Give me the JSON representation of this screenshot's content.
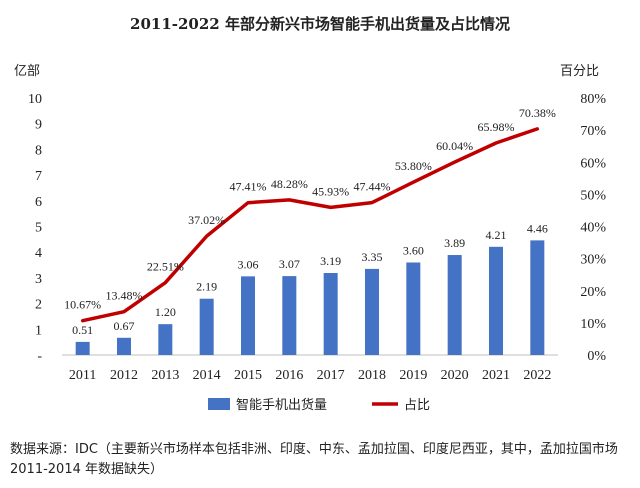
{
  "chart_data": {
    "type": "bar",
    "title": "2011-2022 年部分新兴市场智能手机出货量及占比情况",
    "y_left_label": "亿部",
    "y_right_label": "百分比",
    "categories": [
      "2011",
      "2012",
      "2013",
      "2014",
      "2015",
      "2016",
      "2017",
      "2018",
      "2019",
      "2020",
      "2021",
      "2022"
    ],
    "y_left_ticks": [
      "-",
      "1",
      "2",
      "3",
      "4",
      "5",
      "6",
      "7",
      "8",
      "9",
      "10"
    ],
    "y_right_ticks": [
      "0%",
      "10%",
      "20%",
      "30%",
      "40%",
      "50%",
      "60%",
      "70%",
      "80%"
    ],
    "ylim_left": [
      0,
      10
    ],
    "ylim_right": [
      0,
      80
    ],
    "series": [
      {
        "name": "智能手机出货量",
        "type": "bar",
        "axis": "left",
        "color": "#4472C4",
        "values": [
          0.51,
          0.67,
          1.2,
          2.19,
          3.06,
          3.07,
          3.19,
          3.35,
          3.6,
          3.89,
          4.21,
          4.46
        ],
        "labels": [
          "0.51",
          "0.67",
          "1.20",
          "2.19",
          "3.06",
          "3.07",
          "3.19",
          "3.35",
          "3.60",
          "3.89",
          "4.21",
          "4.46"
        ]
      },
      {
        "name": "占比",
        "type": "line",
        "axis": "right",
        "color": "#C00000",
        "values": [
          10.67,
          13.48,
          22.51,
          37.02,
          47.41,
          48.28,
          45.93,
          47.44,
          53.8,
          60.04,
          65.98,
          70.38
        ],
        "labels": [
          "10.67%",
          "13.48%",
          "22.51%",
          "37.02%",
          "47.41%",
          "48.28%",
          "45.93%",
          "47.44%",
          "53.80%",
          "60.04%",
          "65.98%",
          "70.38%"
        ]
      }
    ],
    "legend_position": "bottom",
    "grid": false
  },
  "source_note": "数据来源：IDC（主要新兴市场样本包括非洲、印度、中东、孟加拉国、印度尼西亚，其中，孟加拉国市场 2011-2014 年数据缺失）"
}
